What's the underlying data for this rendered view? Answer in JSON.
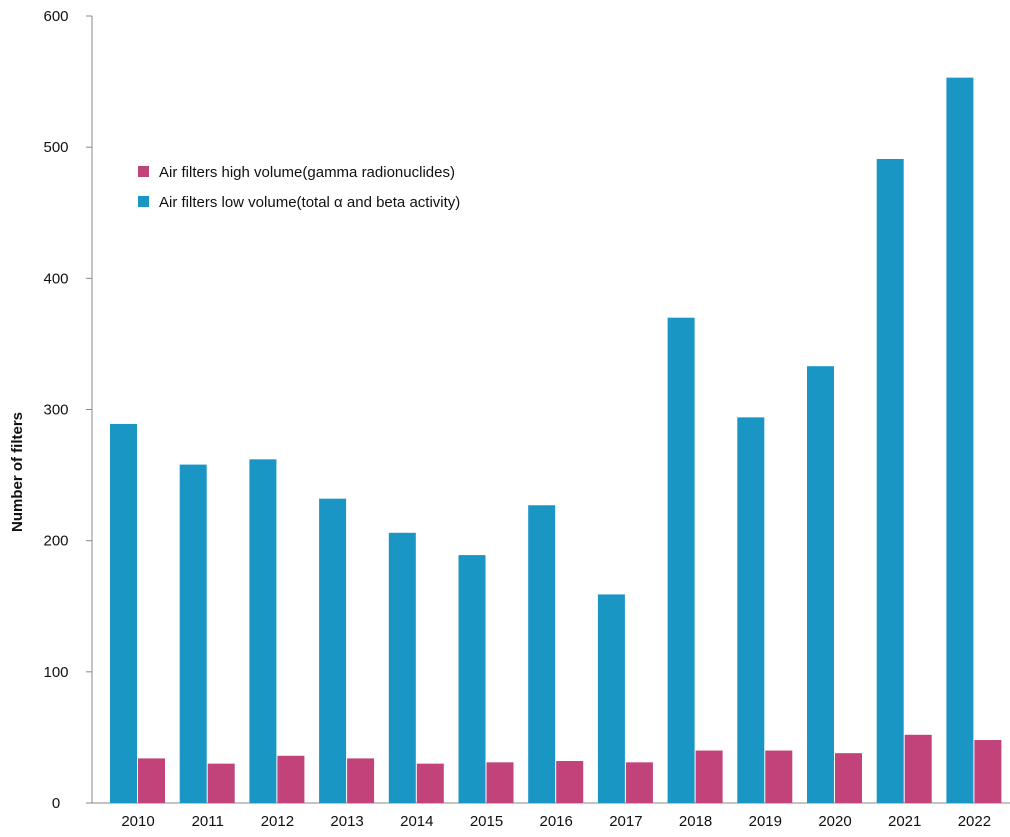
{
  "chart_data": {
    "type": "bar",
    "title": "",
    "xlabel": "",
    "ylabel": "Number of filters",
    "ylim": [
      0,
      600
    ],
    "yticks": [
      0,
      100,
      200,
      300,
      400,
      500,
      600
    ],
    "grid": false,
    "legend_position": "top-left",
    "categories": [
      "2010",
      "2011",
      "2012",
      "2013",
      "2014",
      "2015",
      "2016",
      "2017",
      "2018",
      "2019",
      "2020",
      "2021",
      "2022"
    ],
    "series": [
      {
        "name": "Air filters high volume(gamma radionuclides)",
        "color": "#c2427a",
        "values": [
          34,
          30,
          36,
          34,
          30,
          31,
          32,
          31,
          40,
          40,
          38,
          52,
          48
        ]
      },
      {
        "name": "Air filters low volume(total α and beta activity)",
        "color": "#1996c4",
        "values": [
          289,
          258,
          262,
          232,
          206,
          189,
          227,
          159,
          370,
          294,
          333,
          491,
          553
        ]
      }
    ]
  }
}
